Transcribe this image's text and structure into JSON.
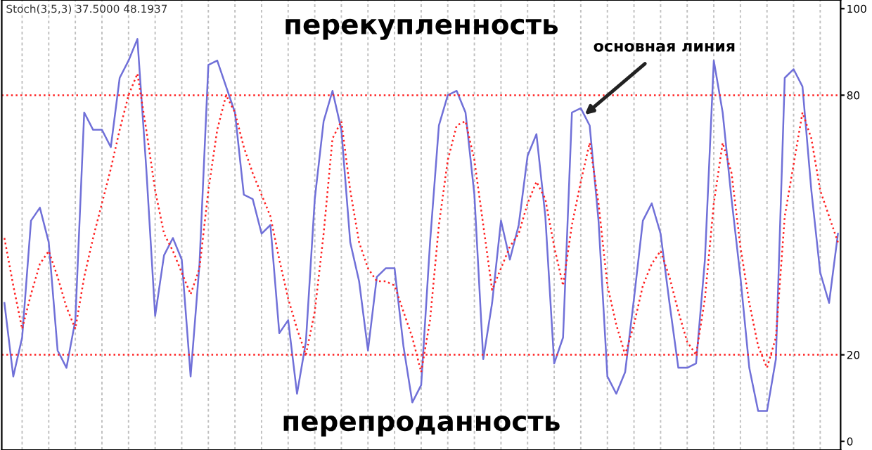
{
  "chart_data": {
    "type": "line",
    "title": "Stoch(3,5,3) 37.5000 48.1937",
    "annotations": [
      "перекупленность",
      "перепроданность",
      "основная линия"
    ],
    "categories": [
      null,
      null,
      null,
      null,
      null,
      null,
      null,
      null,
      null,
      null,
      null,
      null,
      null,
      null,
      null,
      null,
      null,
      null,
      null,
      null,
      null,
      null,
      null,
      null,
      null,
      null,
      null,
      null,
      null,
      null,
      null,
      null,
      null,
      null,
      null,
      null,
      null,
      null,
      null,
      null,
      null,
      null,
      null,
      null,
      null,
      null,
      null,
      null,
      null,
      null,
      null,
      null,
      null,
      null,
      null,
      null,
      null,
      null,
      null,
      null,
      null,
      null,
      null,
      null,
      null,
      null,
      null,
      null,
      null,
      null,
      null,
      null,
      null,
      null,
      null,
      null,
      null,
      null,
      null,
      null,
      null,
      null,
      null,
      null,
      null,
      null,
      null,
      null,
      null,
      null,
      null,
      null,
      null,
      null,
      null
    ],
    "series": [
      {
        "color": "#7070d8",
        "line_style": "solid",
        "values": [
          32,
          15,
          24,
          51,
          54,
          46,
          21,
          17,
          28,
          76,
          72,
          72,
          68,
          84,
          88,
          93,
          63,
          29,
          43,
          47,
          42,
          15,
          41,
          87,
          88,
          82,
          76,
          57,
          56,
          48,
          50,
          25,
          28,
          11,
          23,
          56,
          74,
          81,
          72,
          46,
          37,
          21,
          38,
          40,
          40,
          22,
          9,
          13,
          46,
          73,
          80,
          81,
          76,
          57,
          19,
          32,
          51,
          42,
          50,
          66,
          71,
          52,
          18,
          24,
          76,
          77,
          73,
          51,
          15,
          11,
          16,
          33,
          51,
          55,
          48,
          32,
          17,
          17,
          18,
          42,
          88,
          76,
          56,
          38,
          17,
          7,
          7,
          19,
          84,
          86,
          82,
          58,
          39,
          32,
          48
        ]
      },
      {
        "color": "#ff2020",
        "line_style": "dotted",
        "values": [
          47,
          36,
          26,
          34,
          41,
          44,
          38,
          31,
          26,
          38,
          47,
          55,
          63,
          72,
          80,
          85,
          72,
          58,
          48,
          44,
          39,
          34,
          40,
          58,
          72,
          80,
          76,
          68,
          62,
          57,
          52,
          42,
          33,
          26,
          20,
          30,
          48,
          70,
          74,
          58,
          46,
          40,
          37,
          37,
          36,
          30,
          24,
          16,
          28,
          50,
          65,
          73,
          74,
          65,
          50,
          35,
          40,
          45,
          48,
          55,
          60,
          56,
          45,
          36,
          50,
          60,
          69,
          55,
          36,
          27,
          20,
          27,
          36,
          41,
          44,
          38,
          30,
          23,
          20,
          33,
          55,
          69,
          62,
          45,
          32,
          22,
          17,
          24,
          52,
          64,
          76,
          70,
          58,
          52,
          46
        ]
      }
    ],
    "ylim": [
      -2,
      102
    ],
    "yticks": [
      0,
      20,
      80,
      100
    ],
    "ref_lines": [
      {
        "axis": "y",
        "value": 20,
        "color": "#ff2020",
        "line_style": "dotted"
      },
      {
        "axis": "y",
        "value": 80,
        "color": "#ff2020",
        "line_style": "dotted"
      }
    ],
    "grid": "x",
    "legend": false,
    "marker": "none"
  }
}
